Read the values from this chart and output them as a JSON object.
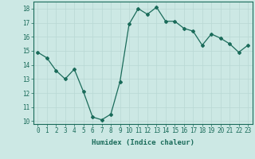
{
  "x": [
    0,
    1,
    2,
    3,
    4,
    5,
    6,
    7,
    8,
    9,
    10,
    11,
    12,
    13,
    14,
    15,
    16,
    17,
    18,
    19,
    20,
    21,
    22,
    23
  ],
  "y": [
    14.9,
    14.5,
    13.6,
    13.0,
    13.7,
    12.1,
    10.3,
    10.1,
    10.5,
    12.8,
    16.9,
    18.0,
    17.6,
    18.1,
    17.1,
    17.1,
    16.6,
    16.4,
    15.4,
    16.2,
    15.9,
    15.5,
    14.9,
    15.4
  ],
  "line_color": "#1a6b5a",
  "marker": "D",
  "marker_size": 2,
  "bg_color": "#cce8e4",
  "grid_color": "#b8d8d4",
  "xlabel": "Humidex (Indice chaleur)",
  "ylim": [
    9.8,
    18.5
  ],
  "xlim": [
    -0.5,
    23.5
  ],
  "yticks": [
    10,
    11,
    12,
    13,
    14,
    15,
    16,
    17,
    18
  ],
  "xticks": [
    0,
    1,
    2,
    3,
    4,
    5,
    6,
    7,
    8,
    9,
    10,
    11,
    12,
    13,
    14,
    15,
    16,
    17,
    18,
    19,
    20,
    21,
    22,
    23
  ],
  "tick_color": "#1a6b5a",
  "label_fontsize": 6.5,
  "tick_fontsize": 5.5,
  "linewidth": 0.9
}
